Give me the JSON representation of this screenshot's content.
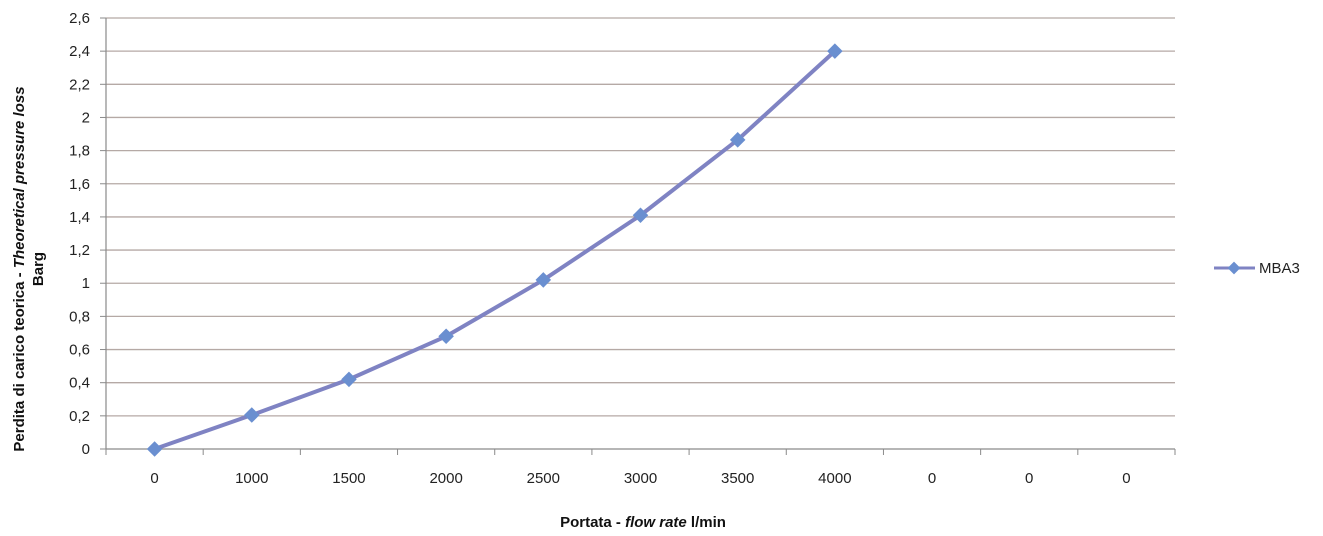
{
  "chart_data": {
    "type": "line",
    "categories": [
      "0",
      "1000",
      "1500",
      "2000",
      "2500",
      "3000",
      "3500",
      "4000",
      "0",
      "0",
      "0"
    ],
    "series": [
      {
        "name": "MBA3",
        "values": [
          0,
          0.205,
          0.42,
          0.68,
          1.02,
          1.41,
          1.865,
          2.4,
          null,
          null,
          null
        ]
      }
    ],
    "xlabel": {
      "prefix": "Portata - ",
      "italic": "flow rate",
      "suffix": " l/min"
    },
    "ylabel": {
      "line1_prefix": "Perdita di carico teorica - ",
      "line1_italic": "Theoretical pressure loss",
      "line2": "Barg"
    },
    "y_ticks": [
      "0",
      "0,2",
      "0,4",
      "0,6",
      "0,8",
      "1",
      "1,2",
      "1,4",
      "1,6",
      "1,8",
      "2",
      "2,2",
      "2,4",
      "2,6"
    ],
    "ylim": [
      0,
      2.6
    ],
    "y_step": 0.2,
    "grid": true,
    "legend_position": "right",
    "colors": {
      "series": "#7f83c3",
      "marker": "#6a8fd0",
      "grid": "#b5a9a5",
      "axis": "#8a8a8a"
    }
  }
}
